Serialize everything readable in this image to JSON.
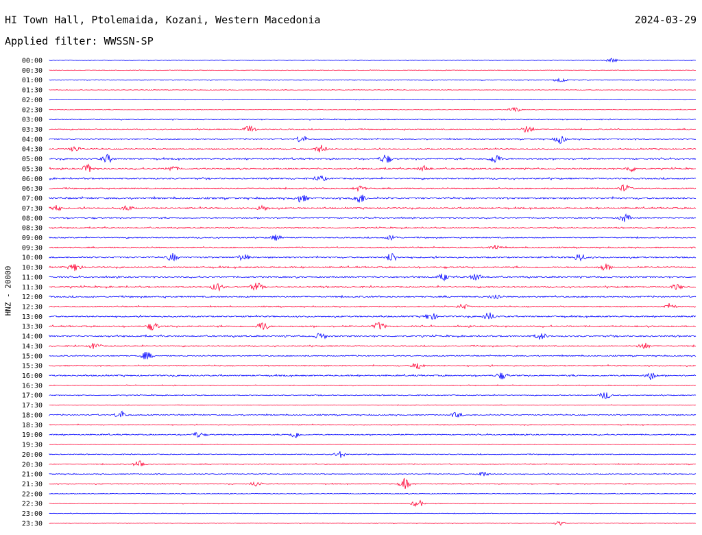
{
  "header": {
    "station": "HI Town Hall, Ptolemaida, Kozani, Western Macedonia",
    "date": "2024-03-29",
    "filter": "Applied filter: WWSSN-SP"
  },
  "axis": {
    "channel_label": "HNZ - 20000"
  },
  "colors": {
    "blue_trace": "#0000ff",
    "red_trace": "#ff0033"
  },
  "chart_data": {
    "type": "line",
    "subtype": "helicorder",
    "title": "HI Town Hall, Ptolemaida, Kozani, Western Macedonia",
    "date": "2024-03-29",
    "filter": "WWSSN-SP",
    "ylabel": "HNZ - 20000",
    "row_minutes": 30,
    "color_cycle": [
      "blue",
      "red"
    ],
    "grid": false,
    "rows": [
      {
        "time": "00:00",
        "level": 1,
        "events": [
          [
            0.87,
            1.5
          ]
        ]
      },
      {
        "time": "00:30",
        "level": 1,
        "events": []
      },
      {
        "time": "01:00",
        "level": 1,
        "events": [
          [
            0.79,
            2
          ]
        ]
      },
      {
        "time": "01:30",
        "level": 1,
        "events": []
      },
      {
        "time": "02:00",
        "level": 0.6,
        "events": []
      },
      {
        "time": "02:30",
        "level": 1,
        "events": [
          [
            0.72,
            2
          ]
        ]
      },
      {
        "time": "03:00",
        "level": 1.5,
        "events": []
      },
      {
        "time": "03:30",
        "level": 1.8,
        "events": [
          [
            0.31,
            3
          ],
          [
            0.74,
            3
          ]
        ]
      },
      {
        "time": "04:00",
        "level": 2,
        "events": [
          [
            0.39,
            3
          ],
          [
            0.79,
            3
          ]
        ]
      },
      {
        "time": "04:30",
        "level": 2,
        "events": [
          [
            0.04,
            2
          ],
          [
            0.42,
            3
          ]
        ]
      },
      {
        "time": "05:00",
        "level": 2.5,
        "events": [
          [
            0.09,
            3
          ],
          [
            0.52,
            3.5
          ],
          [
            0.69,
            3.5
          ]
        ]
      },
      {
        "time": "05:30",
        "level": 2.5,
        "events": [
          [
            0.06,
            3
          ],
          [
            0.19,
            2
          ],
          [
            0.58,
            2
          ],
          [
            0.9,
            2
          ]
        ]
      },
      {
        "time": "06:00",
        "level": 2.5,
        "events": [
          [
            0.42,
            2
          ]
        ]
      },
      {
        "time": "06:30",
        "level": 2,
        "events": [
          [
            0.48,
            2
          ],
          [
            0.89,
            3
          ]
        ]
      },
      {
        "time": "07:00",
        "level": 3,
        "events": [
          [
            0.39,
            3
          ],
          [
            0.48,
            4
          ]
        ]
      },
      {
        "time": "07:30",
        "level": 2.5,
        "events": [
          [
            0.01,
            2
          ],
          [
            0.12,
            2
          ],
          [
            0.33,
            2
          ]
        ]
      },
      {
        "time": "08:00",
        "level": 2,
        "events": [
          [
            0.89,
            3
          ]
        ]
      },
      {
        "time": "08:30",
        "level": 2,
        "events": []
      },
      {
        "time": "09:00",
        "level": 2,
        "events": [
          [
            0.35,
            2
          ],
          [
            0.53,
            2
          ]
        ]
      },
      {
        "time": "09:30",
        "level": 2,
        "events": [
          [
            0.69,
            2
          ]
        ]
      },
      {
        "time": "10:00",
        "level": 2.5,
        "events": [
          [
            0.19,
            3
          ],
          [
            0.3,
            2.5
          ],
          [
            0.53,
            3.5
          ],
          [
            0.82,
            3
          ]
        ]
      },
      {
        "time": "10:30",
        "level": 2.5,
        "events": [
          [
            0.04,
            3
          ],
          [
            0.86,
            2.5
          ]
        ]
      },
      {
        "time": "11:00",
        "level": 2.5,
        "events": [
          [
            0.61,
            2.5
          ],
          [
            0.66,
            2.5
          ]
        ]
      },
      {
        "time": "11:30",
        "level": 2.5,
        "events": [
          [
            0.26,
            3
          ],
          [
            0.32,
            3
          ],
          [
            0.97,
            2
          ]
        ]
      },
      {
        "time": "12:00",
        "level": 2.5,
        "events": [
          [
            0.69,
            2
          ]
        ]
      },
      {
        "time": "12:30",
        "level": 2,
        "events": [
          [
            0.64,
            2
          ],
          [
            0.96,
            2
          ]
        ]
      },
      {
        "time": "13:00",
        "level": 2.5,
        "events": [
          [
            0.59,
            3
          ],
          [
            0.68,
            3
          ]
        ]
      },
      {
        "time": "13:30",
        "level": 2.5,
        "events": [
          [
            0.16,
            3
          ],
          [
            0.33,
            3.5
          ],
          [
            0.51,
            3
          ]
        ]
      },
      {
        "time": "14:00",
        "level": 2.5,
        "events": [
          [
            0.42,
            2.5
          ],
          [
            0.76,
            2.5
          ]
        ]
      },
      {
        "time": "14:30",
        "level": 2,
        "events": [
          [
            0.07,
            2.5
          ],
          [
            0.92,
            2.5
          ]
        ]
      },
      {
        "time": "15:00",
        "level": 2,
        "events": [
          [
            0.15,
            3
          ]
        ]
      },
      {
        "time": "15:30",
        "level": 2,
        "events": [
          [
            0.57,
            3
          ]
        ]
      },
      {
        "time": "16:00",
        "level": 2.5,
        "events": [
          [
            0.7,
            2.5
          ],
          [
            0.93,
            3
          ]
        ]
      },
      {
        "time": "16:30",
        "level": 1.5,
        "events": []
      },
      {
        "time": "17:00",
        "level": 1.5,
        "events": [
          [
            0.86,
            3
          ]
        ]
      },
      {
        "time": "17:30",
        "level": 1,
        "events": []
      },
      {
        "time": "18:00",
        "level": 2,
        "events": [
          [
            0.11,
            3
          ],
          [
            0.63,
            2
          ]
        ]
      },
      {
        "time": "18:30",
        "level": 1.5,
        "events": []
      },
      {
        "time": "19:00",
        "level": 2,
        "events": [
          [
            0.23,
            2
          ],
          [
            0.38,
            2.5
          ]
        ]
      },
      {
        "time": "19:30",
        "level": 1,
        "events": []
      },
      {
        "time": "20:00",
        "level": 1.5,
        "events": [
          [
            0.45,
            2.5
          ]
        ]
      },
      {
        "time": "20:30",
        "level": 1.5,
        "events": [
          [
            0.14,
            3
          ]
        ]
      },
      {
        "time": "21:00",
        "level": 1.5,
        "events": [
          [
            0.67,
            2
          ]
        ]
      },
      {
        "time": "21:30",
        "level": 1.5,
        "events": [
          [
            0.55,
            4
          ],
          [
            0.32,
            2
          ]
        ]
      },
      {
        "time": "22:00",
        "level": 1,
        "events": []
      },
      {
        "time": "22:30",
        "level": 1,
        "events": [
          [
            0.57,
            3
          ]
        ]
      },
      {
        "time": "23:00",
        "level": 1,
        "events": []
      },
      {
        "time": "23:30",
        "level": 1,
        "events": [
          [
            0.79,
            1.5
          ]
        ]
      }
    ]
  }
}
